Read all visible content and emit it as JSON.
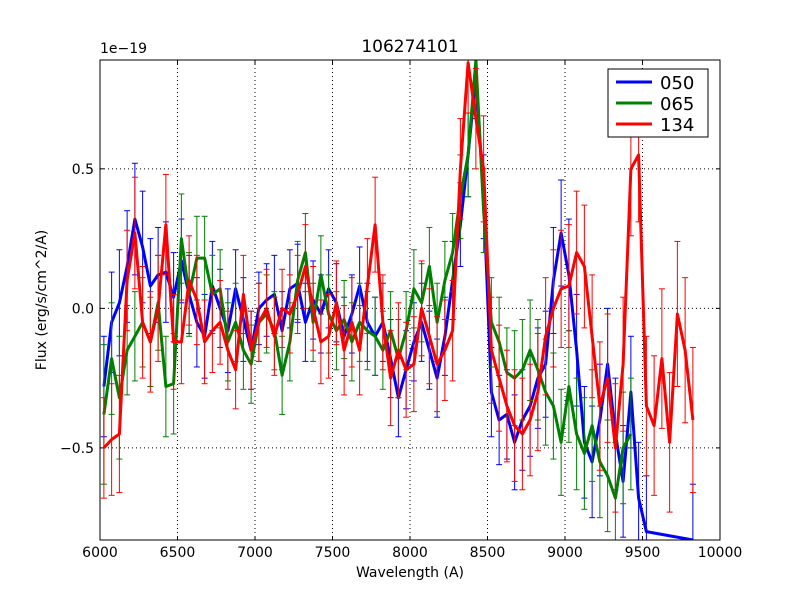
{
  "chart_data": {
    "type": "line",
    "title": "106274101",
    "xlabel": "Wavelength (A)",
    "ylabel": "Flux (erg/s/cm^2/A)",
    "y_multiplier": "1e−19",
    "xlim": [
      6000,
      10000
    ],
    "ylim": [
      -0.83,
      0.89
    ],
    "x_ticks": [
      6000,
      6500,
      7000,
      7500,
      8000,
      8500,
      9000,
      9500,
      10000
    ],
    "x_tick_labels": [
      "6000",
      "6500",
      "7000",
      "7500",
      "8000",
      "8500",
      "9000",
      "9500",
      "10000"
    ],
    "y_ticks": [
      -0.5,
      0.0,
      0.5
    ],
    "y_tick_labels": [
      "−0.5",
      "0.0",
      "0.5"
    ],
    "grid": true,
    "legend_position": "top-right",
    "series": [
      {
        "name": "050",
        "color": "#0000ff",
        "errorbar_color": "#0000ff",
        "x": [
          6025,
          6075,
          6125,
          6175,
          6225,
          6275,
          6325,
          6375,
          6425,
          6475,
          6525,
          6575,
          6625,
          6675,
          6725,
          6775,
          6825,
          6875,
          6925,
          6975,
          7025,
          7075,
          7125,
          7175,
          7225,
          7275,
          7325,
          7375,
          7425,
          7475,
          7525,
          7575,
          7625,
          7675,
          7725,
          7775,
          7825,
          7875,
          7925,
          7975,
          8025,
          8075,
          8125,
          8175,
          8225,
          8275,
          8325,
          8375,
          8425,
          8475,
          8525,
          8575,
          8625,
          8675,
          8725,
          8775,
          8825,
          8875,
          8925,
          8975,
          9025,
          9075,
          9125,
          9175,
          9225,
          9275,
          9325,
          9375,
          9425,
          9475,
          9525,
          9825
        ],
        "y": [
          -0.28,
          -0.05,
          0.02,
          0.15,
          0.32,
          0.22,
          0.08,
          0.12,
          0.13,
          0.04,
          0.17,
          0.05,
          -0.05,
          -0.1,
          0.08,
          0.0,
          -0.08,
          0.07,
          -0.04,
          -0.15,
          0.0,
          0.03,
          0.05,
          -0.08,
          0.07,
          0.09,
          -0.05,
          0.03,
          -0.02,
          0.07,
          0.02,
          -0.1,
          -0.02,
          0.08,
          -0.05,
          -0.1,
          -0.05,
          -0.18,
          -0.32,
          -0.22,
          -0.12,
          -0.05,
          -0.15,
          -0.25,
          -0.1,
          0.1,
          0.3,
          0.55,
          0.83,
          0.4,
          -0.3,
          -0.4,
          -0.38,
          -0.48,
          -0.4,
          -0.35,
          -0.25,
          -0.2,
          0.1,
          0.27,
          0.12,
          -0.15,
          -0.48,
          -0.55,
          -0.4,
          -0.2,
          -0.45,
          -0.62,
          -0.3,
          -0.68,
          -0.8,
          -0.83
        ],
        "err": [
          0.18,
          0.18,
          0.19,
          0.2,
          0.2,
          0.2,
          0.17,
          0.17,
          0.18,
          0.16,
          0.15,
          0.14,
          0.16,
          0.15,
          0.16,
          0.14,
          0.15,
          0.14,
          0.15,
          0.14,
          0.13,
          0.13,
          0.14,
          0.14,
          0.14,
          0.14,
          0.14,
          0.14,
          0.14,
          0.14,
          0.14,
          0.14,
          0.14,
          0.14,
          0.14,
          0.14,
          0.14,
          0.14,
          0.14,
          0.14,
          0.14,
          0.14,
          0.14,
          0.14,
          0.14,
          0.14,
          0.15,
          0.15,
          0.15,
          0.15,
          0.16,
          0.16,
          0.16,
          0.17,
          0.18,
          0.18,
          0.18,
          0.19,
          0.19,
          0.19,
          0.2,
          0.2,
          0.2,
          0.2,
          0.2,
          0.2,
          0.2,
          0.2,
          0.2,
          0.2,
          0.2,
          0.2
        ]
      },
      {
        "name": "065",
        "color": "#008000",
        "errorbar_color": "#008000",
        "x": [
          6025,
          6075,
          6125,
          6175,
          6225,
          6275,
          6325,
          6375,
          6425,
          6475,
          6525,
          6575,
          6625,
          6675,
          6725,
          6775,
          6825,
          6875,
          6925,
          6975,
          7025,
          7075,
          7125,
          7175,
          7225,
          7275,
          7325,
          7375,
          7425,
          7475,
          7525,
          7575,
          7625,
          7675,
          7725,
          7775,
          7825,
          7875,
          7925,
          7975,
          8025,
          8075,
          8125,
          8175,
          8225,
          8275,
          8325,
          8375,
          8425,
          8475,
          8525,
          8575,
          8625,
          8675,
          8725,
          8775,
          8825,
          8875,
          8925,
          8975,
          9025,
          9075,
          9125,
          9175,
          9225,
          9275,
          9325,
          9375,
          9425
        ],
        "y": [
          -0.38,
          -0.18,
          -0.32,
          -0.15,
          -0.1,
          -0.05,
          -0.12,
          0.02,
          -0.28,
          -0.27,
          0.25,
          0.05,
          0.18,
          0.18,
          0.05,
          0.07,
          -0.12,
          -0.05,
          -0.15,
          -0.2,
          -0.05,
          -0.02,
          -0.08,
          -0.24,
          -0.12,
          0.1,
          0.2,
          -0.05,
          0.12,
          -0.02,
          -0.08,
          -0.04,
          -0.12,
          -0.05,
          -0.08,
          -0.1,
          -0.15,
          -0.08,
          -0.18,
          -0.08,
          0.07,
          0.02,
          0.15,
          -0.05,
          0.1,
          0.2,
          0.4,
          0.55,
          0.89,
          0.35,
          -0.05,
          -0.12,
          -0.23,
          -0.25,
          -0.22,
          -0.15,
          -0.22,
          -0.3,
          -0.35,
          -0.48,
          -0.28,
          -0.45,
          -0.52,
          -0.42,
          -0.55,
          -0.6,
          -0.68,
          -0.5,
          -0.45
        ],
        "err": [
          0.25,
          0.2,
          0.22,
          0.16,
          0.16,
          0.16,
          0.16,
          0.17,
          0.18,
          0.18,
          0.16,
          0.15,
          0.15,
          0.15,
          0.14,
          0.14,
          0.14,
          0.14,
          0.14,
          0.14,
          0.14,
          0.14,
          0.14,
          0.14,
          0.14,
          0.14,
          0.14,
          0.14,
          0.14,
          0.14,
          0.14,
          0.14,
          0.14,
          0.14,
          0.14,
          0.14,
          0.14,
          0.14,
          0.14,
          0.14,
          0.14,
          0.14,
          0.14,
          0.14,
          0.14,
          0.14,
          0.15,
          0.15,
          0.15,
          0.15,
          0.16,
          0.16,
          0.16,
          0.17,
          0.18,
          0.18,
          0.18,
          0.19,
          0.19,
          0.19,
          0.2,
          0.2,
          0.2,
          0.2,
          0.2,
          0.2,
          0.2,
          0.2,
          0.2
        ]
      },
      {
        "name": "134",
        "color": "#ff0000",
        "errorbar_color": "#ff0000",
        "x": [
          6025,
          6075,
          6125,
          6175,
          6225,
          6275,
          6325,
          6375,
          6425,
          6475,
          6525,
          6575,
          6625,
          6675,
          6725,
          6775,
          6825,
          6875,
          6925,
          6975,
          7025,
          7075,
          7125,
          7175,
          7225,
          7275,
          7325,
          7375,
          7425,
          7475,
          7525,
          7575,
          7625,
          7675,
          7725,
          7775,
          7825,
          7875,
          7925,
          7975,
          8025,
          8075,
          8125,
          8175,
          8225,
          8275,
          8325,
          8375,
          8425,
          8475,
          8525,
          8575,
          8625,
          8675,
          8725,
          8775,
          8825,
          8875,
          8925,
          8975,
          9025,
          9075,
          9125,
          9175,
          9225,
          9275,
          9325,
          9375,
          9425,
          9475,
          9525,
          9575,
          9625,
          9675,
          9725,
          9775,
          9825
        ],
        "y": [
          -0.5,
          -0.47,
          -0.45,
          0.1,
          0.27,
          -0.05,
          -0.12,
          0.0,
          0.3,
          -0.12,
          -0.12,
          0.1,
          0.03,
          -0.12,
          -0.08,
          -0.05,
          -0.15,
          -0.22,
          0.05,
          -0.15,
          -0.05,
          0.0,
          -0.1,
          0.0,
          -0.02,
          0.05,
          0.15,
          0.0,
          -0.12,
          -0.1,
          0.02,
          -0.15,
          -0.05,
          -0.15,
          0.08,
          0.3,
          -0.05,
          -0.25,
          -0.15,
          -0.22,
          -0.2,
          0.0,
          -0.1,
          -0.2,
          -0.15,
          -0.08,
          0.5,
          0.88,
          0.68,
          0.5,
          -0.15,
          -0.25,
          -0.35,
          -0.42,
          -0.45,
          -0.4,
          -0.3,
          -0.1,
          0.0,
          0.07,
          0.08,
          0.2,
          0.15,
          -0.1,
          -0.35,
          -0.25,
          -0.5,
          -0.2,
          0.5,
          0.55,
          -0.35,
          -0.42,
          -0.18,
          -0.48,
          -0.02,
          -0.15,
          -0.4
        ],
        "err": [
          0.18,
          0.2,
          0.21,
          0.18,
          0.2,
          0.2,
          0.18,
          0.19,
          0.18,
          0.17,
          0.15,
          0.16,
          0.16,
          0.15,
          0.15,
          0.15,
          0.14,
          0.14,
          0.14,
          0.14,
          0.14,
          0.14,
          0.14,
          0.14,
          0.14,
          0.14,
          0.15,
          0.15,
          0.15,
          0.15,
          0.15,
          0.16,
          0.16,
          0.16,
          0.17,
          0.17,
          0.17,
          0.17,
          0.17,
          0.17,
          0.17,
          0.17,
          0.17,
          0.17,
          0.18,
          0.18,
          0.18,
          0.18,
          0.18,
          0.19,
          0.19,
          0.19,
          0.2,
          0.2,
          0.2,
          0.2,
          0.21,
          0.21,
          0.21,
          0.21,
          0.22,
          0.22,
          0.22,
          0.22,
          0.23,
          0.23,
          0.23,
          0.24,
          0.24,
          0.24,
          0.25,
          0.25,
          0.25,
          0.25,
          0.26,
          0.26,
          0.26
        ]
      }
    ]
  }
}
